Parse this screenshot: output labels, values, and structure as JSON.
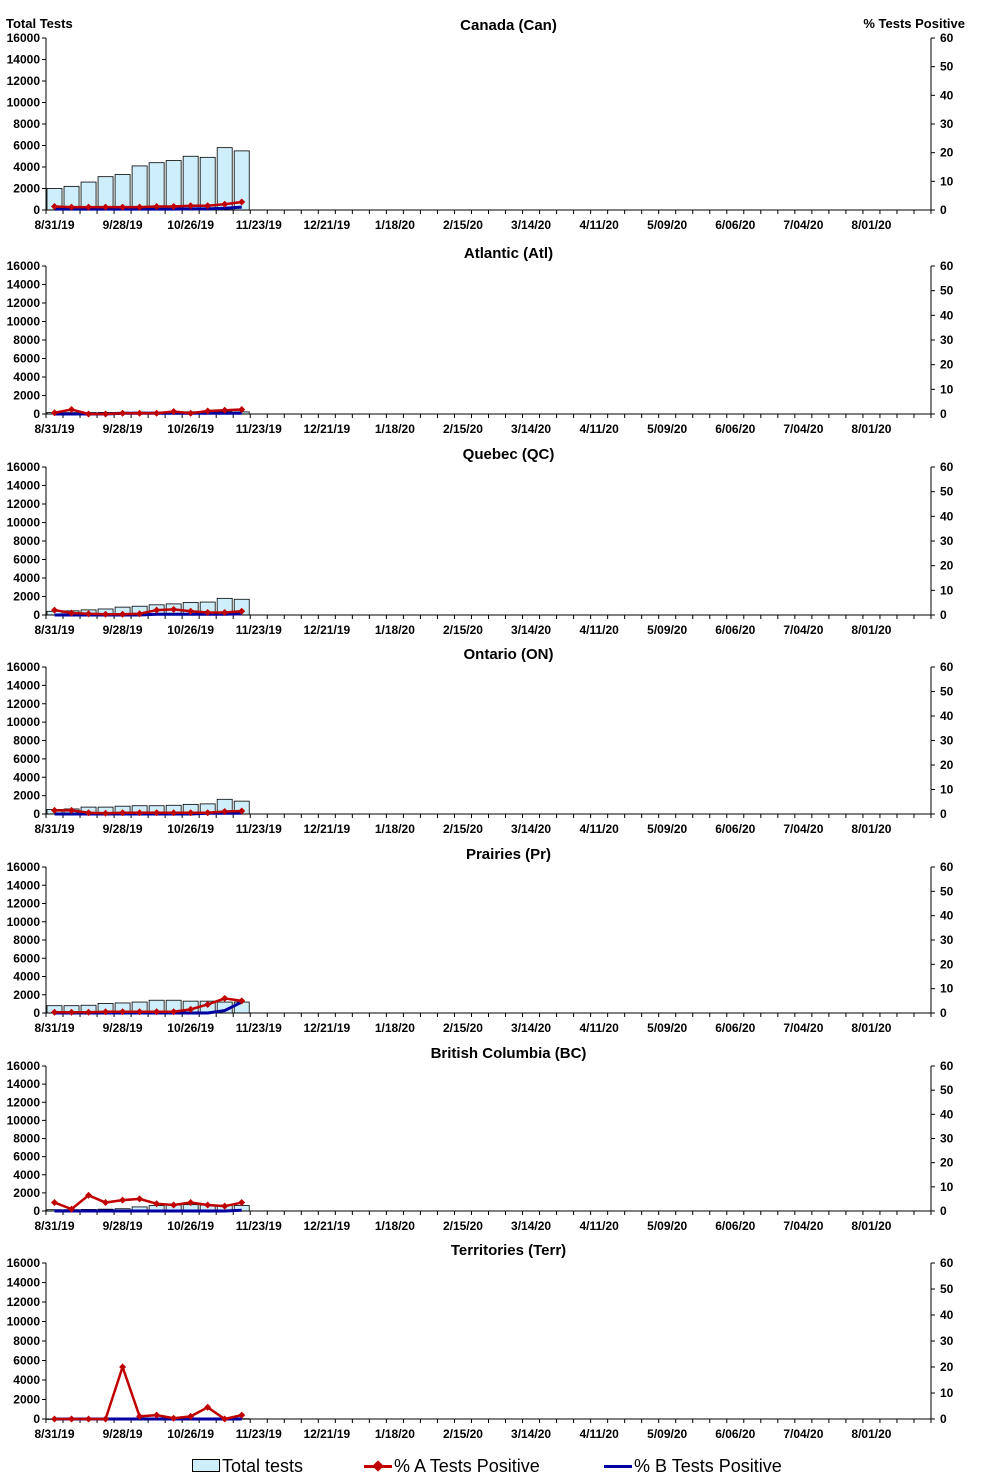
{
  "left_axis_title": "Total Tests",
  "right_axis_title": "% Tests Positive",
  "legend": {
    "total_tests": "Total tests",
    "pct_a": "% A Tests Positive",
    "pct_b": "% B Tests Positive"
  },
  "colors": {
    "bar_fill": "#cfeefc",
    "bar_stroke": "#000000",
    "series_a": "#c00000",
    "series_b": "#0000a0"
  },
  "chart_data": [
    {
      "type": "bar",
      "title": "Canada (Can)",
      "ylim_left": [
        0,
        16000
      ],
      "ylim_right": [
        0,
        60
      ],
      "left_ticks": [
        "0",
        "2000",
        "4000",
        "6000",
        "8000",
        "10000",
        "12000",
        "14000",
        "16000"
      ],
      "right_ticks": [
        "0",
        "10",
        "20",
        "30",
        "40",
        "50",
        "60"
      ],
      "x_tick_labels": [
        "8/31/19",
        "9/28/19",
        "10/26/19",
        "11/23/19",
        "12/21/19",
        "1/18/20",
        "2/15/20",
        "3/14/20",
        "4/11/20",
        "5/09/20",
        "6/06/20",
        "7/04/20",
        "8/01/20"
      ],
      "total_tests": [
        2000,
        2200,
        2600,
        3100,
        3300,
        4100,
        4400,
        4600,
        5000,
        4900,
        5800,
        5500
      ],
      "pct_a_positive": [
        1.2,
        1.0,
        1.0,
        1.0,
        1.0,
        1.0,
        1.2,
        1.2,
        1.5,
        1.5,
        2.0,
        2.8
      ],
      "pct_b_positive": [
        0.3,
        0.3,
        0.3,
        0.3,
        0.3,
        0.3,
        0.3,
        0.3,
        0.4,
        0.4,
        0.6,
        1.0
      ]
    },
    {
      "type": "bar",
      "title": "Atlantic (Atl)",
      "ylim_left": [
        0,
        16000
      ],
      "ylim_right": [
        0,
        60
      ],
      "left_ticks": [
        "0",
        "2000",
        "4000",
        "6000",
        "8000",
        "10000",
        "12000",
        "14000",
        "16000"
      ],
      "right_ticks": [
        "0",
        "10",
        "20",
        "30",
        "40",
        "50",
        "60"
      ],
      "x_tick_labels": [
        "8/31/19",
        "9/28/19",
        "10/26/19",
        "11/23/19",
        "12/21/19",
        "1/18/20",
        "2/15/20",
        "3/14/20",
        "4/11/20",
        "5/09/20",
        "6/06/20",
        "7/04/20",
        "8/01/20"
      ],
      "total_tests": [
        150,
        150,
        160,
        170,
        180,
        200,
        200,
        230,
        240,
        230,
        260,
        230
      ],
      "pct_a_positive": [
        0.5,
        1.8,
        0.0,
        0.0,
        0.3,
        0.3,
        0.3,
        1.0,
        0.3,
        1.2,
        1.5,
        1.8
      ],
      "pct_b_positive": [
        0.0,
        0.0,
        0.0,
        0.0,
        0.3,
        0.3,
        0.3,
        0.3,
        0.3,
        0.3,
        0.3,
        0.3
      ]
    },
    {
      "type": "bar",
      "title": "Quebec (QC)",
      "ylim_left": [
        0,
        16000
      ],
      "ylim_right": [
        0,
        60
      ],
      "left_ticks": [
        "0",
        "2000",
        "4000",
        "6000",
        "8000",
        "10000",
        "12000",
        "14000",
        "16000"
      ],
      "right_ticks": [
        "0",
        "10",
        "20",
        "30",
        "40",
        "50",
        "60"
      ],
      "x_tick_labels": [
        "8/31/19",
        "9/28/19",
        "10/26/19",
        "11/23/19",
        "12/21/19",
        "1/18/20",
        "2/15/20",
        "3/14/20",
        "4/11/20",
        "5/09/20",
        "6/06/20",
        "7/04/20",
        "8/01/20"
      ],
      "total_tests": [
        400,
        450,
        550,
        650,
        850,
        950,
        1100,
        1200,
        1350,
        1400,
        1800,
        1700
      ],
      "pct_a_positive": [
        2.0,
        0.8,
        0.5,
        0.3,
        0.3,
        0.5,
        2.0,
        2.3,
        1.5,
        1.0,
        1.0,
        1.5
      ],
      "pct_b_positive": [
        0.0,
        0.0,
        0.0,
        0.0,
        0.0,
        0.0,
        0.3,
        0.3,
        0.3,
        0.3,
        0.3,
        0.5
      ]
    },
    {
      "type": "bar",
      "title": "Ontario (ON)",
      "ylim_left": [
        0,
        16000
      ],
      "ylim_right": [
        0,
        60
      ],
      "left_ticks": [
        "0",
        "2000",
        "4000",
        "6000",
        "8000",
        "10000",
        "12000",
        "14000",
        "16000"
      ],
      "right_ticks": [
        "0",
        "10",
        "20",
        "30",
        "40",
        "50",
        "60"
      ],
      "x_tick_labels": [
        "8/31/19",
        "9/28/19",
        "10/26/19",
        "11/23/19",
        "12/21/19",
        "1/18/20",
        "2/15/20",
        "3/14/20",
        "4/11/20",
        "5/09/20",
        "6/06/20",
        "7/04/20",
        "8/01/20"
      ],
      "total_tests": [
        500,
        550,
        750,
        750,
        850,
        900,
        900,
        950,
        1050,
        1100,
        1600,
        1400
      ],
      "pct_a_positive": [
        1.5,
        1.5,
        0.5,
        0.3,
        0.5,
        0.5,
        0.5,
        0.5,
        0.5,
        0.5,
        1.0,
        1.2
      ],
      "pct_b_positive": [
        0.0,
        0.0,
        0.0,
        0.0,
        0.0,
        0.0,
        0.0,
        0.0,
        0.0,
        0.3,
        0.3,
        0.3
      ]
    },
    {
      "type": "bar",
      "title": "Prairies (Pr)",
      "ylim_left": [
        0,
        16000
      ],
      "ylim_right": [
        0,
        60
      ],
      "left_ticks": [
        "0",
        "2000",
        "4000",
        "6000",
        "8000",
        "10000",
        "12000",
        "14000",
        "16000"
      ],
      "right_ticks": [
        "0",
        "10",
        "20",
        "30",
        "40",
        "50",
        "60"
      ],
      "x_tick_labels": [
        "8/31/19",
        "9/28/19",
        "10/26/19",
        "11/23/19",
        "12/21/19",
        "1/18/20",
        "2/15/20",
        "3/14/20",
        "4/11/20",
        "5/09/20",
        "6/06/20",
        "7/04/20",
        "8/01/20"
      ],
      "total_tests": [
        800,
        800,
        850,
        1050,
        1100,
        1200,
        1400,
        1400,
        1300,
        1300,
        1200,
        1200
      ],
      "pct_a_positive": [
        0.3,
        0.3,
        0.3,
        0.5,
        0.5,
        0.5,
        0.5,
        0.5,
        1.5,
        3.5,
        6.0,
        5.0
      ],
      "pct_b_positive": [
        0.0,
        0.0,
        0.0,
        0.0,
        0.0,
        0.0,
        0.0,
        0.0,
        0.0,
        0.0,
        1.0,
        4.5
      ]
    },
    {
      "type": "bar",
      "title": "British Columbia (BC)",
      "ylim_left": [
        0,
        16000
      ],
      "ylim_right": [
        0,
        60
      ],
      "left_ticks": [
        "0",
        "2000",
        "4000",
        "6000",
        "8000",
        "10000",
        "12000",
        "14000",
        "16000"
      ],
      "right_ticks": [
        "0",
        "10",
        "20",
        "30",
        "40",
        "50",
        "60"
      ],
      "x_tick_labels": [
        "8/31/19",
        "9/28/19",
        "10/26/19",
        "11/23/19",
        "12/21/19",
        "1/18/20",
        "2/15/20",
        "3/14/20",
        "4/11/20",
        "5/09/20",
        "6/06/20",
        "7/04/20",
        "8/01/20"
      ],
      "total_tests": [
        150,
        150,
        170,
        200,
        250,
        450,
        600,
        650,
        700,
        650,
        650,
        600
      ],
      "pct_a_positive": [
        3.5,
        0.8,
        6.5,
        3.5,
        4.5,
        5.0,
        3.0,
        2.5,
        3.5,
        2.5,
        2.0,
        3.5
      ],
      "pct_b_positive": [
        0.0,
        0.0,
        0.0,
        0.0,
        0.0,
        0.0,
        0.0,
        0.0,
        0.0,
        0.0,
        0.0,
        0.3
      ]
    },
    {
      "type": "bar",
      "title": "Territories (Terr)",
      "ylim_left": [
        0,
        16000
      ],
      "ylim_right": [
        0,
        60
      ],
      "left_ticks": [
        "0",
        "2000",
        "4000",
        "6000",
        "8000",
        "10000",
        "12000",
        "14000",
        "16000"
      ],
      "right_ticks": [
        "0",
        "10",
        "20",
        "30",
        "40",
        "50",
        "60"
      ],
      "x_tick_labels": [
        "8/31/19",
        "9/28/19",
        "10/26/19",
        "11/23/19",
        "12/21/19",
        "1/18/20",
        "2/15/20",
        "3/14/20",
        "4/11/20",
        "5/09/20",
        "6/06/20",
        "7/04/20",
        "8/01/20"
      ],
      "total_tests": [
        10,
        10,
        10,
        15,
        15,
        20,
        30,
        30,
        30,
        30,
        30,
        30
      ],
      "pct_a_positive": [
        0.0,
        0.0,
        0.0,
        0.0,
        20.0,
        1.0,
        1.5,
        0.3,
        1.0,
        4.5,
        0.0,
        1.5
      ],
      "pct_b_positive": [
        0.0,
        0.0,
        0.0,
        0.0,
        0.0,
        0.0,
        0.0,
        0.0,
        0.0,
        0.0,
        0.0,
        0.0
      ]
    }
  ]
}
